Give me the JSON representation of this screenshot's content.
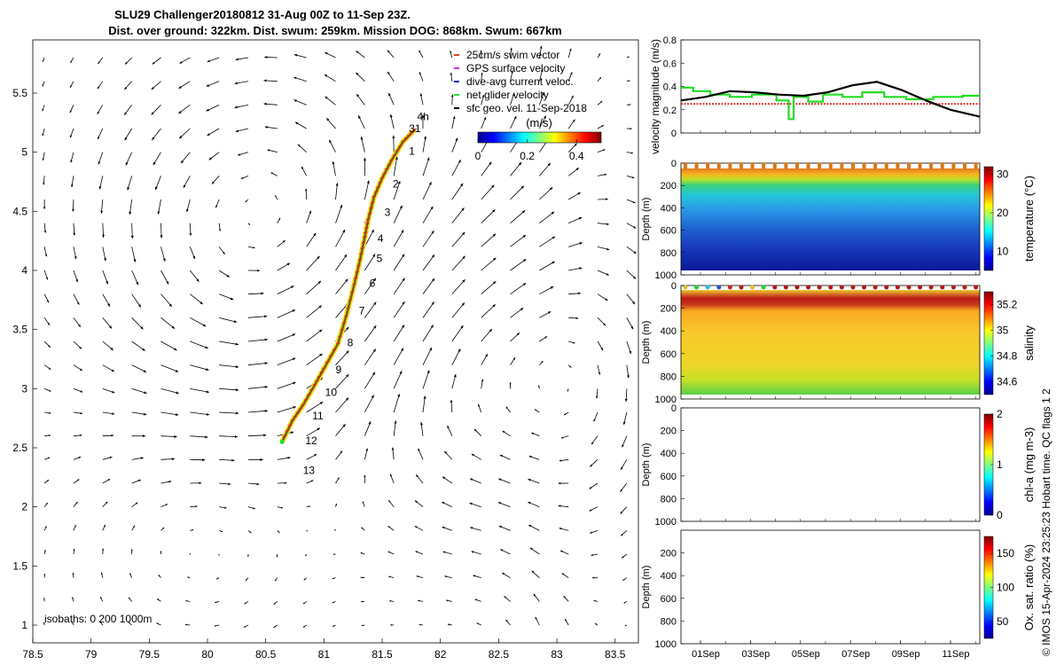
{
  "title_line1": "SLU29 Challenger20180812 31-Aug 00Z to 11-Sep 23Z.",
  "title_line2": "Dist. over ground: 322km. Dist. swum: 259km. Mission DOG: 868km. Swum: 667km",
  "copyright": "© IMOS 15-Apr-2024 23:25:23 Hobart time. QC flags 1  2",
  "chart_data": [
    {
      "type": "map-track",
      "xlim": [
        78.5,
        83.7
      ],
      "ylim": [
        0.85,
        5.95
      ],
      "xticks": [
        78.5,
        79,
        79.5,
        80,
        80.5,
        81,
        81.5,
        82,
        82.5,
        83,
        83.5
      ],
      "xtick_labels": [
        "78.5",
        "79",
        "79.5",
        "80",
        "80.5",
        "81",
        "81.5",
        "82",
        "82.5",
        "83",
        "83.5"
      ],
      "yticks": [
        1,
        1.5,
        2,
        2.5,
        3,
        3.5,
        4,
        4.5,
        5,
        5.5
      ],
      "ytick_labels": [
        "1",
        "1.5",
        "2",
        "2.5",
        "3",
        "3.5",
        "4",
        "4.5",
        "5",
        "5.5"
      ],
      "track": [
        [
          81.78,
          5.19
        ],
        [
          81.68,
          5.09
        ],
        [
          81.58,
          4.93
        ],
        [
          81.5,
          4.78
        ],
        [
          81.43,
          4.62
        ],
        [
          81.38,
          4.43
        ],
        [
          81.35,
          4.28
        ],
        [
          81.31,
          4.09
        ],
        [
          81.26,
          3.88
        ],
        [
          81.19,
          3.61
        ],
        [
          81.12,
          3.38
        ],
        [
          81.0,
          3.17
        ],
        [
          80.92,
          3.03
        ],
        [
          80.82,
          2.86
        ],
        [
          80.73,
          2.73
        ],
        [
          80.64,
          2.55
        ]
      ],
      "day_labels": [
        {
          "text": "4h",
          "x": 81.8,
          "y": 5.27
        },
        {
          "text": "31",
          "x": 81.73,
          "y": 5.17
        },
        {
          "text": "1",
          "x": 81.73,
          "y": 4.98
        },
        {
          "text": "2",
          "x": 81.59,
          "y": 4.7
        },
        {
          "text": "3",
          "x": 81.52,
          "y": 4.46
        },
        {
          "text": "4",
          "x": 81.46,
          "y": 4.24
        },
        {
          "text": "5",
          "x": 81.45,
          "y": 4.07
        },
        {
          "text": "6",
          "x": 81.39,
          "y": 3.86
        },
        {
          "text": "7",
          "x": 81.3,
          "y": 3.63
        },
        {
          "text": "8",
          "x": 81.2,
          "y": 3.36
        },
        {
          "text": "9",
          "x": 81.1,
          "y": 3.13
        },
        {
          "text": "10",
          "x": 81.01,
          "y": 2.94
        },
        {
          "text": "11",
          "x": 80.9,
          "y": 2.74
        },
        {
          "text": "12",
          "x": 80.84,
          "y": 2.53
        },
        {
          "text": "13",
          "x": 80.82,
          "y": 2.28
        }
      ],
      "legend": [
        {
          "label": "25cm/s swim vector",
          "color": "#e8401f"
        },
        {
          "label": "GPS surface velocity",
          "color": "#cc33cc"
        },
        {
          "label": "dive-avg current veloc.",
          "color": "#1f1fcc"
        },
        {
          "label": "net glider velocity",
          "color": "#22dd22"
        },
        {
          "label": "sfc geo. vel. 11-Sep-2018",
          "color": "#000000"
        }
      ],
      "colorbar": {
        "label": "(m/s)",
        "ticks": [
          "0",
          "0.2",
          "0.4"
        ],
        "range": [
          0,
          0.5
        ]
      },
      "isobath_text": "isobaths: 0   200  1000m"
    },
    {
      "type": "line",
      "ylabel": "velocity magnitude (m/s)",
      "ylim": [
        0,
        0.8
      ],
      "yticks": [
        "0",
        "0.2",
        "0.4",
        "0.6",
        "0.8"
      ],
      "xlim": [
        0,
        12.2
      ],
      "series": [
        {
          "name": "swim 25cm/s",
          "color": "#dd2222",
          "x": [
            0,
            12.2
          ],
          "y": [
            0.25,
            0.25
          ]
        },
        {
          "name": "net glider velocity",
          "color": "#22dd22",
          "x": [
            0,
            0.5,
            0.5,
            1.2,
            1.2,
            2.0,
            2.0,
            2.9,
            2.9,
            3.9,
            3.9,
            4.4,
            4.4,
            4.6,
            4.6,
            5.2,
            5.2,
            5.8,
            5.8,
            6.6,
            6.6,
            7.4,
            7.4,
            8.3,
            8.3,
            9.2,
            9.2,
            10.3,
            10.3,
            11.5,
            11.5,
            12.2
          ],
          "y": [
            0.39,
            0.39,
            0.36,
            0.36,
            0.33,
            0.33,
            0.31,
            0.31,
            0.33,
            0.33,
            0.28,
            0.28,
            0.12,
            0.12,
            0.31,
            0.31,
            0.27,
            0.27,
            0.33,
            0.33,
            0.31,
            0.31,
            0.35,
            0.35,
            0.31,
            0.31,
            0.29,
            0.29,
            0.31,
            0.31,
            0.32,
            0.32
          ]
        },
        {
          "name": "sfc geo. vel.",
          "color": "#000000",
          "x": [
            0,
            1,
            2,
            3,
            4,
            5,
            6,
            7,
            8,
            9,
            10,
            11,
            12.2
          ],
          "y": [
            0.28,
            0.31,
            0.36,
            0.35,
            0.33,
            0.32,
            0.35,
            0.41,
            0.44,
            0.37,
            0.28,
            0.2,
            0.14
          ]
        }
      ]
    },
    {
      "type": "heatmap",
      "ylabel": "Depth (m)",
      "yticks": [
        "0",
        "200",
        "400",
        "600",
        "800",
        "1000"
      ],
      "cbar_label": "temperature (°C)",
      "cbar_ticks": [
        "10",
        "20",
        "30"
      ],
      "cmap": "jet",
      "crange": [
        5,
        32
      ]
    },
    {
      "type": "heatmap",
      "ylabel": "Depth (m)",
      "yticks": [
        "0",
        "200",
        "400",
        "600",
        "800",
        "1000"
      ],
      "cbar_label": "salinity",
      "cbar_ticks": [
        "34.6",
        "34.8",
        "35",
        "35.2"
      ],
      "cmap": "jet",
      "crange": [
        34.5,
        35.3
      ]
    },
    {
      "type": "heatmap",
      "ylabel": "Depth (m)",
      "yticks": [
        "0",
        "200",
        "400",
        "600",
        "800",
        "1000"
      ],
      "cbar_label": "chl-a (mg m-3)",
      "cbar_ticks": [
        "0",
        "1",
        "2"
      ],
      "cmap": "jet",
      "crange": [
        0,
        2
      ]
    },
    {
      "type": "heatmap",
      "ylabel": "Depth (m)",
      "yticks": [
        "200",
        "400",
        "600",
        "800",
        "1000"
      ],
      "cbar_label": "Ox. sat. ratio (%)",
      "cbar_ticks": [
        "50",
        "100",
        "150"
      ],
      "cmap": "jet",
      "crange": [
        25,
        175
      ],
      "xtick_labels": [
        "01Sep",
        "03Sep",
        "05Sep",
        "07Sep",
        "09Sep",
        "11Sep"
      ]
    }
  ]
}
